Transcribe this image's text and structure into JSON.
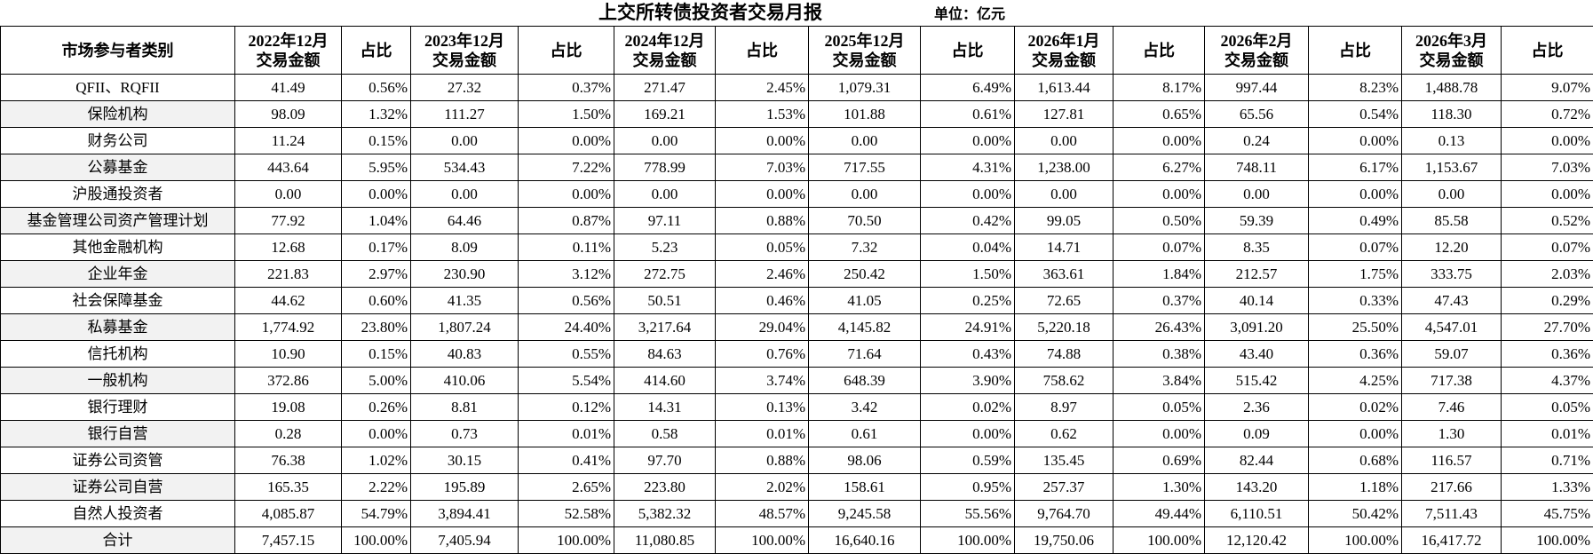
{
  "title": "上交所转债投资者交易月报",
  "unit": "单位：亿元",
  "headers": [
    [
      "市场参与者类别"
    ],
    [
      "2022年12月",
      "交易金额"
    ],
    [
      "占比"
    ],
    [
      "2023年12月",
      "交易金额"
    ],
    [
      "占比"
    ],
    [
      "2024年12月",
      "交易金额"
    ],
    [
      "占比"
    ],
    [
      "2025年12月",
      "交易金额"
    ],
    [
      "占比"
    ],
    [
      "2026年1月",
      "交易金额"
    ],
    [
      "占比"
    ],
    [
      "2026年2月",
      "交易金额"
    ],
    [
      "占比"
    ],
    [
      "2026年3月",
      "交易金额"
    ],
    [
      "占比"
    ]
  ],
  "rows": [
    [
      "QFII、RQFII",
      "41.49",
      "0.56%",
      "27.32",
      "0.37%",
      "271.47",
      "2.45%",
      "1,079.31",
      "6.49%",
      "1,613.44",
      "8.17%",
      "997.44",
      "8.23%",
      "1,488.78",
      "9.07%"
    ],
    [
      "保险机构",
      "98.09",
      "1.32%",
      "111.27",
      "1.50%",
      "169.21",
      "1.53%",
      "101.88",
      "0.61%",
      "127.81",
      "0.65%",
      "65.56",
      "0.54%",
      "118.30",
      "0.72%"
    ],
    [
      "财务公司",
      "11.24",
      "0.15%",
      "0.00",
      "0.00%",
      "0.00",
      "0.00%",
      "0.00",
      "0.00%",
      "0.00",
      "0.00%",
      "0.24",
      "0.00%",
      "0.13",
      "0.00%"
    ],
    [
      "公募基金",
      "443.64",
      "5.95%",
      "534.43",
      "7.22%",
      "778.99",
      "7.03%",
      "717.55",
      "4.31%",
      "1,238.00",
      "6.27%",
      "748.11",
      "6.17%",
      "1,153.67",
      "7.03%"
    ],
    [
      "沪股通投资者",
      "0.00",
      "0.00%",
      "0.00",
      "0.00%",
      "0.00",
      "0.00%",
      "0.00",
      "0.00%",
      "0.00",
      "0.00%",
      "0.00",
      "0.00%",
      "0.00",
      "0.00%"
    ],
    [
      "基金管理公司资产管理计划",
      "77.92",
      "1.04%",
      "64.46",
      "0.87%",
      "97.11",
      "0.88%",
      "70.50",
      "0.42%",
      "99.05",
      "0.50%",
      "59.39",
      "0.49%",
      "85.58",
      "0.52%"
    ],
    [
      "其他金融机构",
      "12.68",
      "0.17%",
      "8.09",
      "0.11%",
      "5.23",
      "0.05%",
      "7.32",
      "0.04%",
      "14.71",
      "0.07%",
      "8.35",
      "0.07%",
      "12.20",
      "0.07%"
    ],
    [
      "企业年金",
      "221.83",
      "2.97%",
      "230.90",
      "3.12%",
      "272.75",
      "2.46%",
      "250.42",
      "1.50%",
      "363.61",
      "1.84%",
      "212.57",
      "1.75%",
      "333.75",
      "2.03%"
    ],
    [
      "社会保障基金",
      "44.62",
      "0.60%",
      "41.35",
      "0.56%",
      "50.51",
      "0.46%",
      "41.05",
      "0.25%",
      "72.65",
      "0.37%",
      "40.14",
      "0.33%",
      "47.43",
      "0.29%"
    ],
    [
      "私募基金",
      "1,774.92",
      "23.80%",
      "1,807.24",
      "24.40%",
      "3,217.64",
      "29.04%",
      "4,145.82",
      "24.91%",
      "5,220.18",
      "26.43%",
      "3,091.20",
      "25.50%",
      "4,547.01",
      "27.70%"
    ],
    [
      "信托机构",
      "10.90",
      "0.15%",
      "40.83",
      "0.55%",
      "84.63",
      "0.76%",
      "71.64",
      "0.43%",
      "74.88",
      "0.38%",
      "43.40",
      "0.36%",
      "59.07",
      "0.36%"
    ],
    [
      "一般机构",
      "372.86",
      "5.00%",
      "410.06",
      "5.54%",
      "414.60",
      "3.74%",
      "648.39",
      "3.90%",
      "758.62",
      "3.84%",
      "515.42",
      "4.25%",
      "717.38",
      "4.37%"
    ],
    [
      "银行理财",
      "19.08",
      "0.26%",
      "8.81",
      "0.12%",
      "14.31",
      "0.13%",
      "3.42",
      "0.02%",
      "8.97",
      "0.05%",
      "2.36",
      "0.02%",
      "7.46",
      "0.05%"
    ],
    [
      "银行自营",
      "0.28",
      "0.00%",
      "0.73",
      "0.01%",
      "0.58",
      "0.01%",
      "0.61",
      "0.00%",
      "0.62",
      "0.00%",
      "0.09",
      "0.00%",
      "1.30",
      "0.01%"
    ],
    [
      "证券公司资管",
      "76.38",
      "1.02%",
      "30.15",
      "0.41%",
      "97.70",
      "0.88%",
      "98.06",
      "0.59%",
      "135.45",
      "0.69%",
      "82.44",
      "0.68%",
      "116.57",
      "0.71%"
    ],
    [
      "证券公司自营",
      "165.35",
      "2.22%",
      "195.89",
      "2.65%",
      "223.80",
      "2.02%",
      "158.61",
      "0.95%",
      "257.37",
      "1.30%",
      "143.20",
      "1.18%",
      "217.66",
      "1.33%"
    ],
    [
      "自然人投资者",
      "4,085.87",
      "54.79%",
      "3,894.41",
      "52.58%",
      "5,382.32",
      "48.57%",
      "9,245.58",
      "55.56%",
      "9,764.70",
      "49.44%",
      "6,110.51",
      "50.42%",
      "7,511.43",
      "45.75%"
    ],
    [
      "合计",
      "7,457.15",
      "100.00%",
      "7,405.94",
      "100.00%",
      "11,080.85",
      "100.00%",
      "16,640.16",
      "100.00%",
      "19,750.06",
      "100.00%",
      "12,120.42",
      "100.00%",
      "16,417.72",
      "100.00%"
    ]
  ]
}
